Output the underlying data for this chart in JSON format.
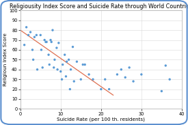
{
  "title": "Religiousity Index Score and Suicide Rate through World Countries",
  "xlabel": "Suicide Rate (per 100 th. residents)",
  "ylabel": "Religioun Index Score",
  "xlim": [
    0,
    40
  ],
  "ylim": [
    0,
    100
  ],
  "xticks": [
    0,
    10,
    20,
    30,
    40
  ],
  "yticks": [
    0,
    10,
    20,
    30,
    40,
    50,
    60,
    70,
    80,
    90,
    100
  ],
  "scatter_x": [
    1,
    1.5,
    2,
    2.5,
    3,
    3.2,
    3.5,
    4,
    4.2,
    5,
    5.2,
    5.5,
    6,
    6.3,
    6.5,
    7,
    7.2,
    7.5,
    7.7,
    8,
    8.3,
    8.5,
    9,
    9.2,
    9.5,
    10,
    10.3,
    10.5,
    11,
    11.3,
    11.5,
    12,
    12.3,
    12.5,
    13,
    13.3,
    14,
    15,
    15.5,
    16,
    17,
    18,
    20,
    21,
    22,
    24,
    25,
    26,
    27,
    28,
    30,
    35,
    36,
    37
  ],
  "scatter_y": [
    65,
    83,
    75,
    78,
    60,
    50,
    73,
    75,
    40,
    75,
    60,
    42,
    70,
    68,
    68,
    55,
    45,
    70,
    68,
    80,
    42,
    50,
    62,
    40,
    67,
    38,
    30,
    45,
    55,
    33,
    48,
    50,
    20,
    40,
    63,
    28,
    48,
    30,
    45,
    45,
    35,
    30,
    20,
    30,
    20,
    35,
    40,
    32,
    42,
    28,
    35,
    18,
    44,
    30
  ],
  "dot_color": "#5b9bd5",
  "line_color": "#e07050",
  "line_x": [
    0,
    23
  ],
  "line_y": [
    80,
    14
  ],
  "title_fontsize": 5.8,
  "axis_label_fontsize": 5.2,
  "tick_fontsize": 4.8,
  "dot_size": 6,
  "bg_color": "#ffffff",
  "outer_border_color": "#5b8fcf",
  "grid_color": "#d8d8d8",
  "spine_color": "#aaaaaa"
}
